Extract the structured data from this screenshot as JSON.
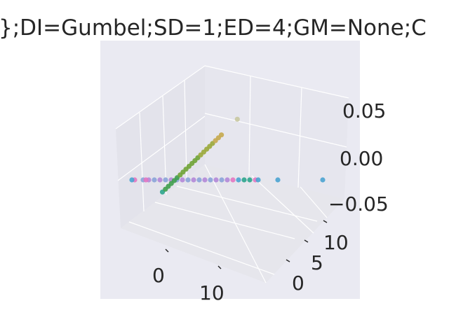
{
  "chart_data": {
    "type": "scatter",
    "projection": "3d",
    "title": "};DI=Gumbel;SD=1;ED=4;GM=None;C",
    "xlabel": "",
    "ylabel": "",
    "zlabel": "",
    "grid": true,
    "background": "#eaeaf2",
    "x_ticks": [
      "0",
      "10"
    ],
    "y_ticks": [
      "0",
      "5",
      "10"
    ],
    "z_ticks": [
      "0.05",
      "0.00",
      "−0.05"
    ],
    "zlim": [
      -0.08,
      0.08
    ],
    "series": [
      {
        "color": "#8aa3d8",
        "points": [
          [
            -6,
            0,
            0
          ],
          [
            -4,
            0,
            0
          ],
          [
            -2,
            0,
            0
          ],
          [
            0,
            0,
            0
          ],
          [
            2,
            0,
            0
          ],
          [
            4,
            0,
            0
          ],
          [
            6,
            0,
            0
          ],
          [
            8,
            0,
            0
          ]
        ]
      },
      {
        "color": "#b287d8",
        "points": [
          [
            -5,
            0,
            0
          ],
          [
            -3,
            0,
            0
          ],
          [
            -1,
            0,
            0
          ],
          [
            1,
            0,
            0
          ],
          [
            3,
            0,
            0
          ],
          [
            5,
            0,
            0
          ],
          [
            7,
            0,
            0
          ],
          [
            9,
            0,
            0
          ]
        ]
      },
      {
        "color": "#e377c2",
        "points": [
          [
            -7.5,
            0,
            0
          ],
          [
            -5.5,
            0,
            0
          ],
          [
            10,
            0,
            0
          ],
          [
            14,
            0,
            0
          ]
        ]
      },
      {
        "color": "#4aa3d0",
        "points": [
          [
            -8,
            0,
            0
          ],
          [
            11,
            0,
            0
          ],
          [
            14.5,
            0,
            0
          ],
          [
            18,
            0,
            0
          ],
          [
            26,
            0,
            0
          ]
        ]
      },
      {
        "color": "#2ca58d",
        "points": [
          [
            12,
            0,
            0
          ],
          [
            13,
            0,
            0
          ],
          [
            -1.6,
            -3.4,
            0
          ]
        ]
      },
      {
        "color": "#3f9e4e",
        "points": [
          [
            -1.3,
            -2.6,
            0
          ],
          [
            -1.0,
            -1.8,
            0
          ],
          [
            -0.7,
            -1.0,
            0
          ],
          [
            -0.4,
            -0.2,
            0
          ],
          [
            -0.1,
            0.6,
            0
          ]
        ]
      },
      {
        "color": "#6fa336",
        "points": [
          [
            0.2,
            1.4,
            0
          ],
          [
            0.5,
            2.2,
            0
          ],
          [
            0.8,
            3.0,
            0
          ],
          [
            1.1,
            3.8,
            0
          ],
          [
            1.4,
            4.6,
            0
          ],
          [
            1.7,
            5.4,
            0
          ],
          [
            2.0,
            6.2,
            0
          ]
        ]
      },
      {
        "color": "#9aa83a",
        "points": [
          [
            2.3,
            7.0,
            0
          ],
          [
            2.6,
            7.8,
            0
          ],
          [
            2.9,
            8.6,
            0
          ],
          [
            3.2,
            9.4,
            0
          ],
          [
            3.5,
            10.2,
            0
          ]
        ]
      },
      {
        "color": "#c5a94d",
        "points": [
          [
            3.8,
            11.0,
            0
          ],
          [
            4.1,
            11.8,
            0
          ],
          [
            4.4,
            12.6,
            0
          ]
        ]
      },
      {
        "color": "#c8c8a0",
        "points": [
          [
            6.0,
            17.0,
            0
          ]
        ]
      }
    ]
  }
}
